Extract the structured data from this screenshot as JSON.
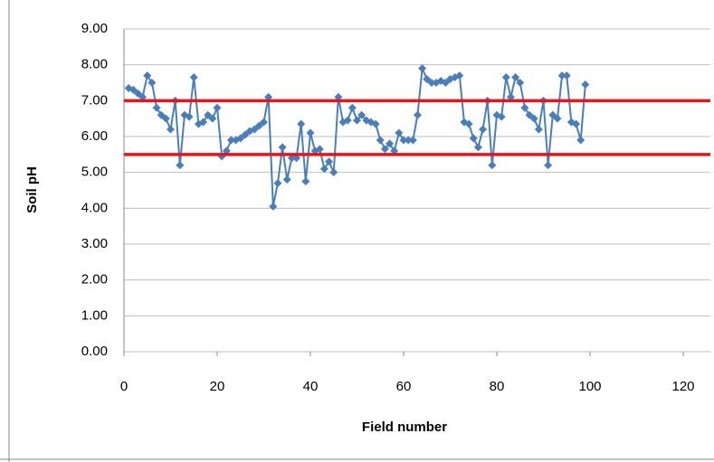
{
  "chart_data": {
    "type": "line",
    "x_label": "Field number",
    "y_label": "Soil pH",
    "x": [
      1,
      2,
      3,
      4,
      5,
      6,
      7,
      8,
      9,
      10,
      11,
      12,
      13,
      14,
      15,
      16,
      17,
      18,
      19,
      20,
      21,
      22,
      23,
      24,
      25,
      26,
      27,
      28,
      29,
      30,
      31,
      32,
      33,
      34,
      35,
      36,
      37,
      38,
      39,
      40,
      41,
      42,
      43,
      44,
      45,
      46,
      47,
      48,
      49,
      50,
      51,
      52,
      53,
      54,
      55,
      56,
      57,
      58,
      59,
      60,
      61,
      62,
      63,
      64,
      65,
      66,
      67,
      68,
      69,
      70,
      71,
      72,
      73,
      74,
      75,
      76,
      77,
      78,
      79,
      80,
      81,
      82,
      83,
      84,
      85,
      86,
      87,
      88,
      89,
      90,
      91,
      92,
      93,
      94,
      95,
      96,
      97,
      98,
      99
    ],
    "series": [
      {
        "color": "#4a7ebb",
        "values": [
          7.35,
          7.3,
          7.2,
          7.1,
          7.7,
          7.5,
          6.8,
          6.6,
          6.5,
          6.2,
          7.0,
          5.2,
          6.6,
          6.55,
          7.65,
          6.35,
          6.4,
          6.6,
          6.5,
          6.8,
          5.45,
          5.6,
          5.9,
          5.9,
          5.95,
          6.05,
          6.15,
          6.2,
          6.3,
          6.4,
          7.1,
          4.05,
          4.7,
          5.7,
          4.8,
          5.4,
          5.4,
          6.35,
          4.75,
          6.1,
          5.6,
          5.65,
          5.1,
          5.3,
          5.0,
          7.1,
          6.4,
          6.45,
          6.8,
          6.45,
          6.6,
          6.45,
          6.4,
          6.35,
          5.9,
          5.65,
          5.8,
          5.6,
          6.1,
          5.9,
          5.9,
          5.9,
          6.6,
          7.9,
          7.6,
          7.5,
          7.5,
          7.55,
          7.5,
          7.6,
          7.65,
          7.7,
          6.4,
          6.35,
          5.95,
          5.7,
          6.2,
          7.0,
          5.2,
          6.6,
          6.55,
          7.65,
          7.1,
          7.65,
          7.5,
          6.8,
          6.6,
          6.5,
          6.2,
          7.0,
          5.2,
          6.6,
          6.5,
          7.7,
          7.7,
          6.4,
          6.35,
          5.9,
          7.45
        ]
      }
    ],
    "reference_lines": [
      {
        "value": 7.0,
        "color": "#e8141c"
      },
      {
        "value": 5.5,
        "color": "#e8141c"
      }
    ],
    "xlim": [
      0,
      120
    ],
    "xticks": [
      0,
      20,
      40,
      60,
      80,
      100,
      120
    ],
    "ylim": [
      0,
      9
    ],
    "yticks": [
      {
        "value": 0,
        "label": "0.00"
      },
      {
        "value": 1,
        "label": "1.00"
      },
      {
        "value": 2,
        "label": "2.00"
      },
      {
        "value": 3,
        "label": "3.00"
      },
      {
        "value": 4,
        "label": "4.00"
      },
      {
        "value": 5,
        "label": "5.00"
      },
      {
        "value": 6,
        "label": "6.00"
      },
      {
        "value": 7,
        "label": "7.00"
      },
      {
        "value": 8,
        "label": "8.00"
      },
      {
        "value": 9,
        "label": "9.00"
      }
    ],
    "grid": true
  }
}
